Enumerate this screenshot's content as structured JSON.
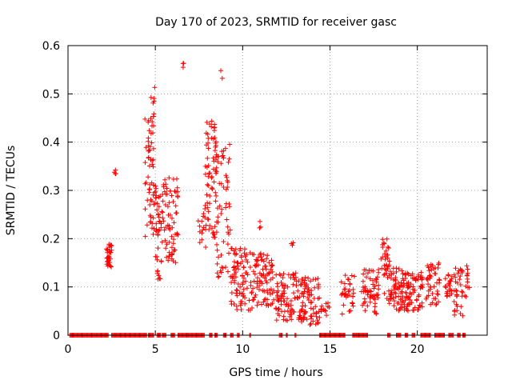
{
  "chart_data": {
    "type": "scatter",
    "title": "Day 170 of 2023, SRMTID for receiver gasc",
    "xlabel": "GPS time / hours",
    "ylabel": "SRMTID / TECUs",
    "xlim": [
      0,
      24
    ],
    "ylim": [
      0,
      0.6
    ],
    "xticks": [
      0,
      5,
      10,
      15,
      20
    ],
    "yticks": [
      0,
      0.1,
      0.2,
      0.3,
      0.4,
      0.5,
      0.6
    ],
    "xtick_labels": [
      "0",
      "5",
      "10",
      "15",
      "20"
    ],
    "ytick_labels": [
      "0",
      "0.1",
      "0.2",
      "0.3",
      "0.4",
      "0.5",
      "0.6"
    ],
    "grid": true,
    "marker": "+",
    "color": "#ff0000",
    "note": "Approximate reconstruction of the scatter cloud: zero-value points along the baseline plus clusters of positive SRMTID values.",
    "zero_intervals": [
      [
        0.1,
        2.3
      ],
      [
        2.5,
        4.5
      ],
      [
        4.6,
        4.9
      ],
      [
        5.1,
        5.3
      ],
      [
        5.4,
        5.6
      ],
      [
        5.9,
        6.1
      ],
      [
        6.3,
        7.8
      ],
      [
        8.1,
        8.3
      ],
      [
        8.4,
        8.6
      ],
      [
        8.9,
        9.1
      ],
      [
        9.3,
        9.5
      ],
      [
        9.7,
        9.8
      ],
      [
        10.4,
        10.5
      ],
      [
        12.1,
        12.3
      ],
      [
        12.5,
        12.6
      ],
      [
        13.0,
        13.1
      ],
      [
        14.4,
        15.9
      ],
      [
        16.3,
        17.2
      ],
      [
        18.3,
        18.5
      ],
      [
        18.8,
        19.1
      ],
      [
        19.3,
        19.5
      ],
      [
        19.7,
        19.9
      ],
      [
        20.2,
        20.8
      ],
      [
        21.0,
        21.6
      ],
      [
        21.8,
        22.1
      ],
      [
        22.3,
        22.5
      ],
      [
        22.6,
        22.8
      ]
    ],
    "clusters": [
      {
        "x": [
          2.2,
          2.5
        ],
        "y": [
          0.14,
          0.19
        ],
        "n": 30
      },
      {
        "x": [
          2.6,
          2.8
        ],
        "y": [
          0.33,
          0.345
        ],
        "n": 4
      },
      {
        "x": [
          4.4,
          5.0
        ],
        "y": [
          0.2,
          0.45
        ],
        "n": 60
      },
      {
        "x": [
          4.7,
          5.0
        ],
        "y": [
          0.45,
          0.52
        ],
        "n": 8
      },
      {
        "x": [
          5.0,
          5.4
        ],
        "y": [
          0.1,
          0.31
        ],
        "n": 40
      },
      {
        "x": [
          5.4,
          6.3
        ],
        "y": [
          0.15,
          0.33
        ],
        "n": 70
      },
      {
        "x": [
          6.4,
          6.7
        ],
        "y": [
          0.555,
          0.565
        ],
        "n": 3
      },
      {
        "x": [
          7.4,
          7.9
        ],
        "y": [
          0.18,
          0.26
        ],
        "n": 12
      },
      {
        "x": [
          7.8,
          8.5
        ],
        "y": [
          0.2,
          0.45
        ],
        "n": 70
      },
      {
        "x": [
          8.7,
          8.9
        ],
        "y": [
          0.52,
          0.565
        ],
        "n": 2
      },
      {
        "x": [
          8.5,
          9.3
        ],
        "y": [
          0.12,
          0.4
        ],
        "n": 60
      },
      {
        "x": [
          9.3,
          10.6
        ],
        "y": [
          0.05,
          0.18
        ],
        "n": 90
      },
      {
        "x": [
          10.6,
          11.8
        ],
        "y": [
          0.06,
          0.17
        ],
        "n": 80
      },
      {
        "x": [
          10.9,
          11.1
        ],
        "y": [
          0.22,
          0.24
        ],
        "n": 3
      },
      {
        "x": [
          11.9,
          13.1
        ],
        "y": [
          0.03,
          0.13
        ],
        "n": 80
      },
      {
        "x": [
          12.7,
          12.9
        ],
        "y": [
          0.18,
          0.21
        ],
        "n": 3
      },
      {
        "x": [
          13.1,
          14.4
        ],
        "y": [
          0.02,
          0.12
        ],
        "n": 90
      },
      {
        "x": [
          14.4,
          15.0
        ],
        "y": [
          0.04,
          0.07
        ],
        "n": 12
      },
      {
        "x": [
          15.6,
          16.4
        ],
        "y": [
          0.04,
          0.13
        ],
        "n": 35
      },
      {
        "x": [
          16.8,
          17.8
        ],
        "y": [
          0.04,
          0.14
        ],
        "n": 60
      },
      {
        "x": [
          17.9,
          18.4
        ],
        "y": [
          0.07,
          0.2
        ],
        "n": 35
      },
      {
        "x": [
          18.4,
          19.2
        ],
        "y": [
          0.05,
          0.14
        ],
        "n": 60
      },
      {
        "x": [
          19.2,
          20.3
        ],
        "y": [
          0.05,
          0.13
        ],
        "n": 80
      },
      {
        "x": [
          20.5,
          21.3
        ],
        "y": [
          0.06,
          0.15
        ],
        "n": 45
      },
      {
        "x": [
          21.6,
          22.0
        ],
        "y": [
          0.08,
          0.13
        ],
        "n": 25
      },
      {
        "x": [
          22.1,
          22.6
        ],
        "y": [
          0.04,
          0.14
        ],
        "n": 35
      },
      {
        "x": [
          22.7,
          23.0
        ],
        "y": [
          0.07,
          0.15
        ],
        "n": 12
      }
    ]
  }
}
